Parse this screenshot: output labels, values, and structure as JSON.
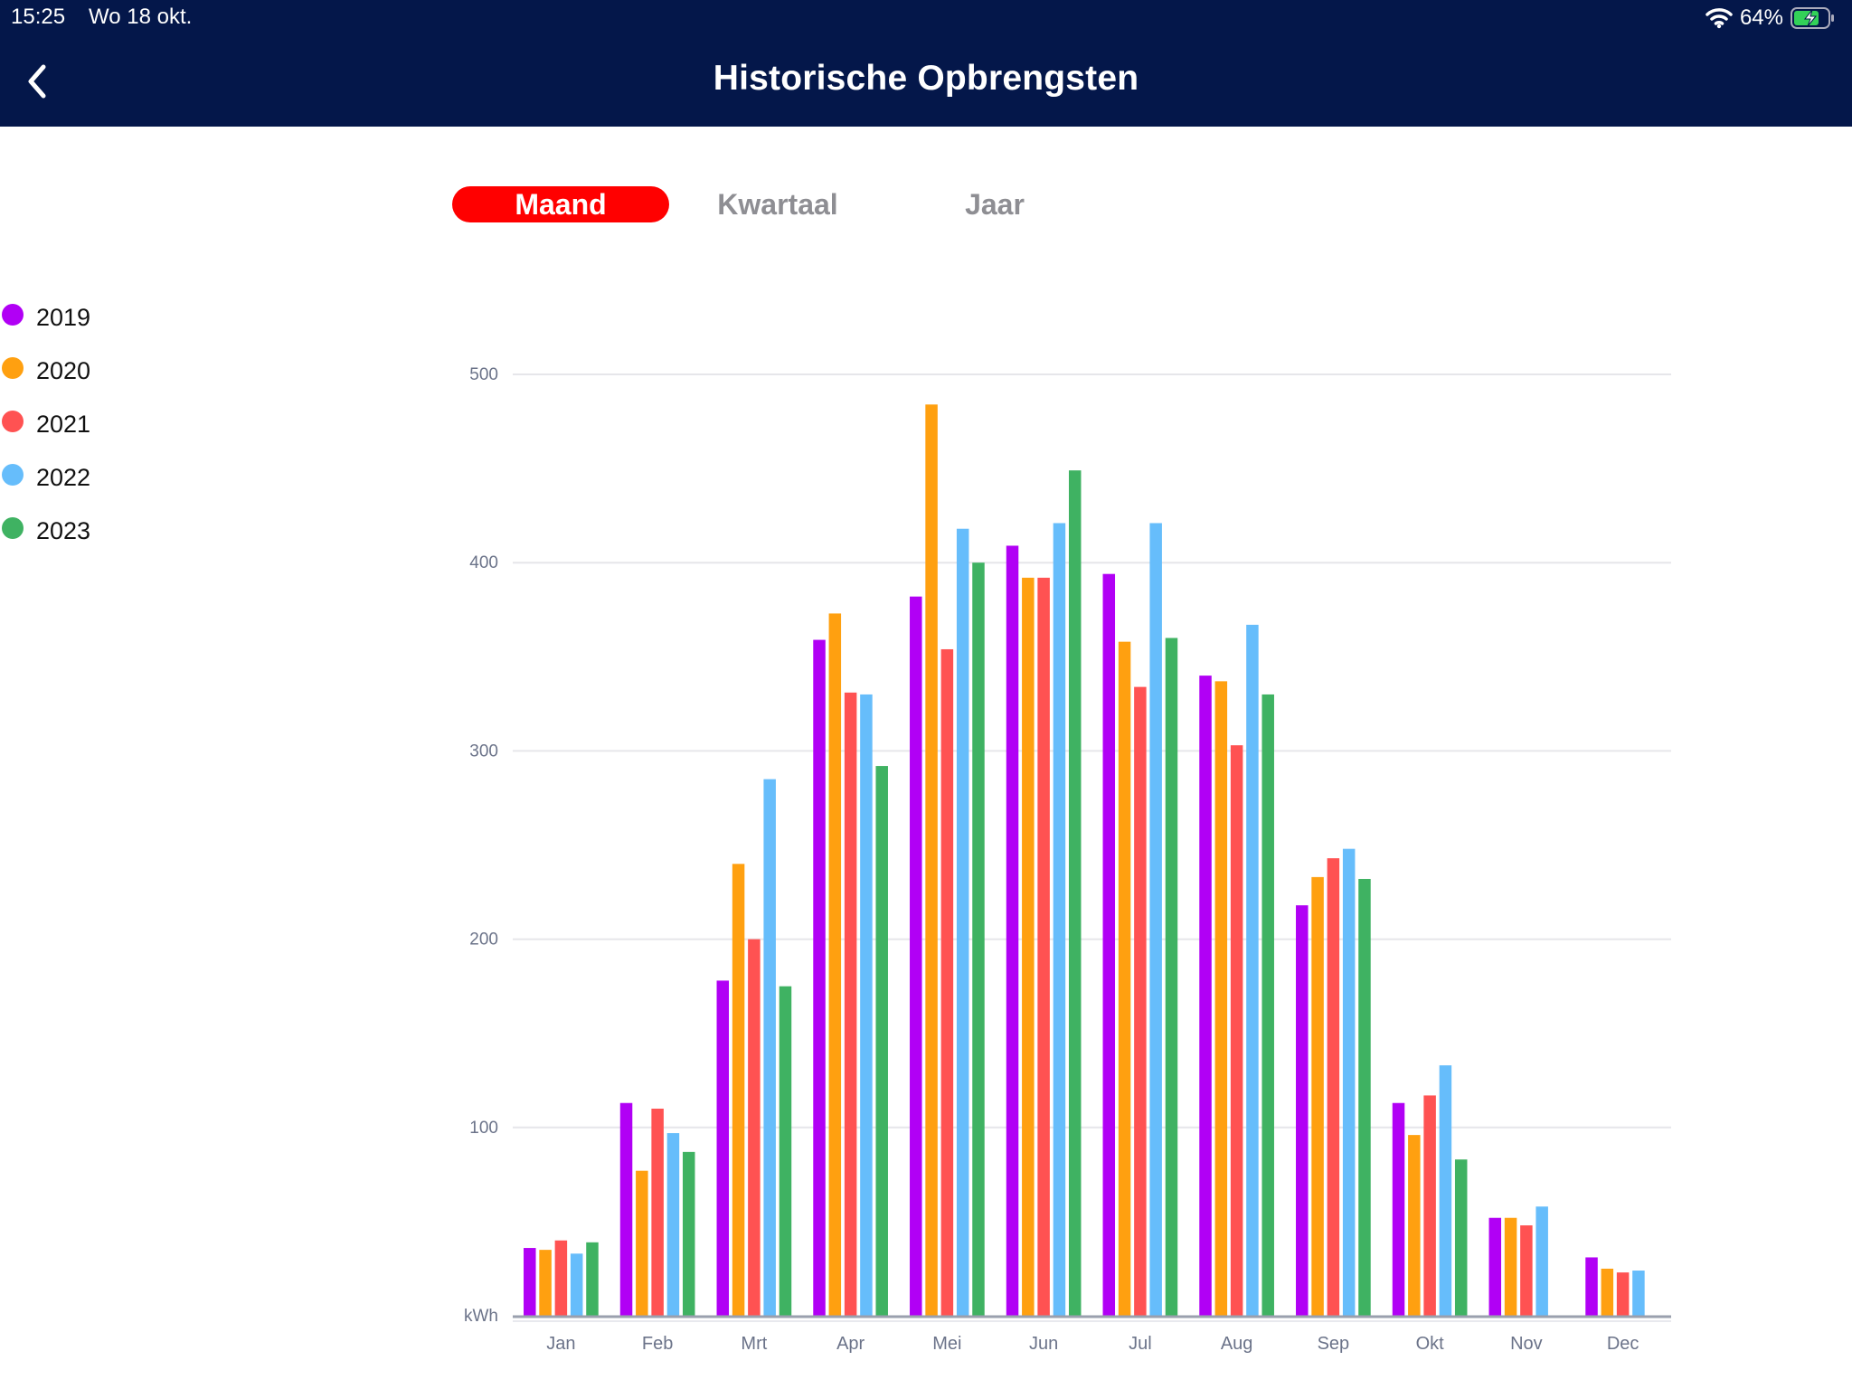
{
  "status_bar": {
    "time": "15:25",
    "date": "Wo 18 okt.",
    "battery": "64%"
  },
  "nav": {
    "title": "Historische Opbrengsten"
  },
  "tabs": [
    {
      "label": "Maand",
      "active": true
    },
    {
      "label": "Kwartaal",
      "active": false
    },
    {
      "label": "Jaar",
      "active": false
    }
  ],
  "colors": {
    "header_bg": "#04174a",
    "active_tab": "#ff0000"
  },
  "chart_data": {
    "type": "bar",
    "ylabel": "kWh",
    "ylim": [
      0,
      500
    ],
    "yticks": [
      100,
      200,
      300,
      400,
      500
    ],
    "grid": true,
    "legend_position": "left",
    "categories": [
      "Jan",
      "Feb",
      "Mrt",
      "Apr",
      "Mei",
      "Jun",
      "Jul",
      "Aug",
      "Sep",
      "Okt",
      "Nov",
      "Dec"
    ],
    "series": [
      {
        "name": "2019",
        "color": "#b100f5",
        "values": [
          36,
          113,
          178,
          359,
          382,
          409,
          394,
          340,
          218,
          113,
          52,
          31
        ]
      },
      {
        "name": "2020",
        "color": "#ffa010",
        "values": [
          35,
          77,
          240,
          373,
          484,
          392,
          358,
          337,
          233,
          96,
          52,
          25
        ]
      },
      {
        "name": "2021",
        "color": "#ff5252",
        "values": [
          40,
          110,
          200,
          331,
          354,
          392,
          334,
          303,
          243,
          117,
          48,
          23
        ]
      },
      {
        "name": "2022",
        "color": "#66bdfb",
        "values": [
          33,
          97,
          285,
          330,
          418,
          421,
          421,
          367,
          248,
          133,
          58,
          24
        ]
      },
      {
        "name": "2023",
        "color": "#3fb262",
        "values": [
          39,
          87,
          175,
          292,
          400,
          449,
          360,
          330,
          232,
          83,
          null,
          null
        ]
      }
    ]
  }
}
